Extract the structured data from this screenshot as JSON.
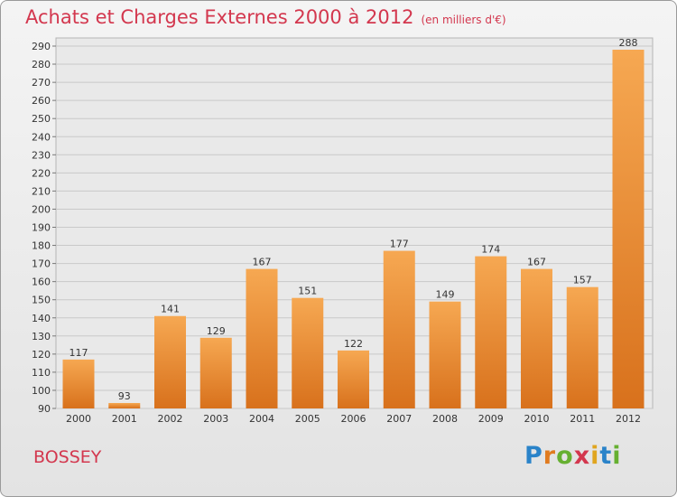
{
  "title": "Achats et Charges Externes 2000 à 2012",
  "subtitle": "(en milliers d'€)",
  "city": "BOSSEY",
  "logo": {
    "p": "P",
    "r": "r",
    "o": "o",
    "x": "x",
    "i": "i",
    "t": "t",
    "i2": "i"
  },
  "colors": {
    "bar_top": "#f6a852",
    "bar_bottom": "#d8711c",
    "title": "#d3374e"
  },
  "chart_data": {
    "type": "bar",
    "categories": [
      "2000",
      "2001",
      "2002",
      "2003",
      "2004",
      "2005",
      "2006",
      "2007",
      "2008",
      "2009",
      "2010",
      "2011",
      "2012"
    ],
    "values": [
      117,
      93,
      141,
      129,
      167,
      151,
      122,
      177,
      149,
      174,
      167,
      157,
      288
    ],
    "ylim": [
      90,
      290
    ],
    "yticks": [
      90,
      100,
      110,
      120,
      130,
      140,
      150,
      160,
      170,
      180,
      190,
      200,
      210,
      220,
      230,
      240,
      250,
      260,
      270,
      280,
      290
    ],
    "grid": true,
    "legend": "none"
  }
}
